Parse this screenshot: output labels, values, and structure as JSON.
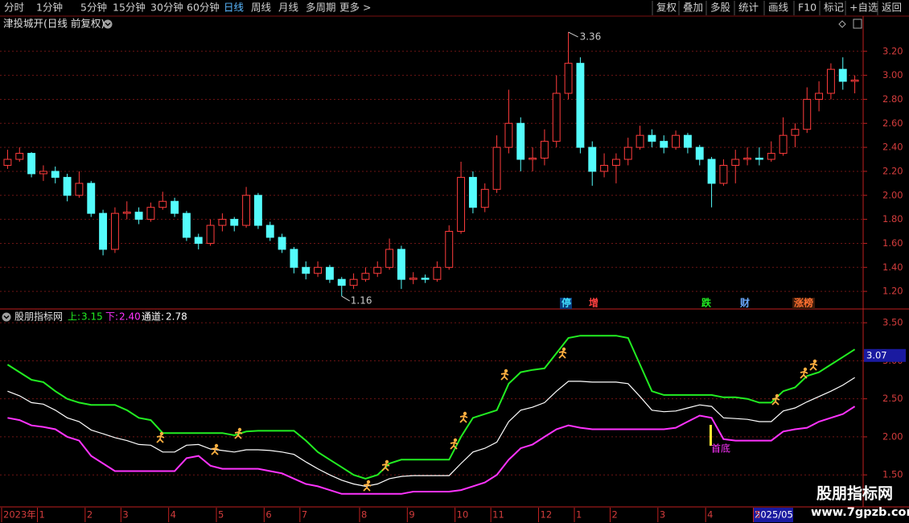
{
  "toolbar": {
    "left": [
      "分时",
      "1分钟",
      "5分钟",
      "15分钟",
      "30分钟",
      "60分钟",
      "日线",
      "周线",
      "月线",
      "多周期",
      "更多 >"
    ],
    "right": [
      "复权",
      "叠加",
      "多股",
      "统计",
      "画线",
      "F10",
      "标记",
      "+自选",
      "返回"
    ]
  },
  "event_badges": [
    "停",
    "增",
    "跌",
    "财",
    "涨榜"
  ],
  "indicator_note": "首底",
  "cursor_date": "2025/05",
  "watermark": {
    "title": "股朋指标网",
    "url": "www.7gpzb.com"
  },
  "chart_data": [
    {
      "type": "candlestick",
      "title": "津投城开(日线 前复权)",
      "categories": [
        "2023年",
        null,
        null,
        "1",
        null,
        null,
        null,
        "2",
        null,
        null,
        "3",
        null,
        null,
        null,
        "4",
        null,
        null,
        null,
        "5",
        null,
        null,
        null,
        "6",
        null,
        null,
        "7",
        null,
        null,
        null,
        null,
        "8",
        null,
        null,
        null,
        "9",
        null,
        null,
        null,
        "10",
        null,
        null,
        "11",
        null,
        null,
        null,
        "12",
        null,
        null,
        "1",
        null,
        null,
        "2",
        null,
        null,
        null,
        "3",
        null,
        null,
        null,
        "4",
        null,
        null,
        null,
        "5",
        null,
        null,
        null,
        null,
        null,
        null,
        null,
        null
      ],
      "candles": [
        [
          2.25,
          2.38,
          2.22,
          2.3
        ],
        [
          2.3,
          2.4,
          2.28,
          2.35
        ],
        [
          2.35,
          2.36,
          2.15,
          2.18
        ],
        [
          2.18,
          2.25,
          2.12,
          2.2
        ],
        [
          2.2,
          2.24,
          2.1,
          2.15
        ],
        [
          2.15,
          2.18,
          1.95,
          2.0
        ],
        [
          2.0,
          2.2,
          1.98,
          2.1
        ],
        [
          2.1,
          2.12,
          1.82,
          1.85
        ],
        [
          1.85,
          1.88,
          1.5,
          1.55
        ],
        [
          1.55,
          1.9,
          1.52,
          1.85
        ],
        [
          1.85,
          1.95,
          1.8,
          1.86
        ],
        [
          1.86,
          1.9,
          1.76,
          1.8
        ],
        [
          1.8,
          1.94,
          1.78,
          1.9
        ],
        [
          1.9,
          2.03,
          1.88,
          1.95
        ],
        [
          1.95,
          1.98,
          1.82,
          1.85
        ],
        [
          1.85,
          1.87,
          1.62,
          1.65
        ],
        [
          1.65,
          1.68,
          1.55,
          1.6
        ],
        [
          1.6,
          1.8,
          1.58,
          1.75
        ],
        [
          1.75,
          1.85,
          1.7,
          1.8
        ],
        [
          1.8,
          1.82,
          1.7,
          1.75
        ],
        [
          1.75,
          2.07,
          1.73,
          2.0
        ],
        [
          2.0,
          2.02,
          1.72,
          1.75
        ],
        [
          1.75,
          1.78,
          1.62,
          1.65
        ],
        [
          1.65,
          1.68,
          1.52,
          1.55
        ],
        [
          1.55,
          1.57,
          1.35,
          1.4
        ],
        [
          1.4,
          1.45,
          1.3,
          1.35
        ],
        [
          1.35,
          1.45,
          1.32,
          1.4
        ],
        [
          1.4,
          1.42,
          1.27,
          1.3
        ],
        [
          1.3,
          1.32,
          1.16,
          1.25
        ],
        [
          1.25,
          1.35,
          1.22,
          1.3
        ],
        [
          1.3,
          1.4,
          1.28,
          1.35
        ],
        [
          1.35,
          1.45,
          1.32,
          1.4
        ],
        [
          1.4,
          1.64,
          1.38,
          1.55
        ],
        [
          1.55,
          1.58,
          1.22,
          1.3
        ],
        [
          1.3,
          1.36,
          1.26,
          1.31
        ],
        [
          1.31,
          1.34,
          1.27,
          1.3
        ],
        [
          1.3,
          1.45,
          1.28,
          1.4
        ],
        [
          1.4,
          1.75,
          1.38,
          1.7
        ],
        [
          1.7,
          2.28,
          1.68,
          2.15
        ],
        [
          2.15,
          2.2,
          1.85,
          1.9
        ],
        [
          1.9,
          2.1,
          1.86,
          2.05
        ],
        [
          2.05,
          2.5,
          2.02,
          2.4
        ],
        [
          2.4,
          2.88,
          2.35,
          2.6
        ],
        [
          2.6,
          2.65,
          2.2,
          2.3
        ],
        [
          2.3,
          2.4,
          2.2,
          2.31
        ],
        [
          2.31,
          2.55,
          2.25,
          2.45
        ],
        [
          2.45,
          3.0,
          2.4,
          2.85
        ],
        [
          2.85,
          3.36,
          2.8,
          3.1
        ],
        [
          3.1,
          3.15,
          2.35,
          2.4
        ],
        [
          2.4,
          2.45,
          2.08,
          2.2
        ],
        [
          2.2,
          2.35,
          2.15,
          2.25
        ],
        [
          2.25,
          2.35,
          2.1,
          2.3
        ],
        [
          2.3,
          2.48,
          2.25,
          2.4
        ],
        [
          2.4,
          2.58,
          2.38,
          2.5
        ],
        [
          2.5,
          2.55,
          2.4,
          2.45
        ],
        [
          2.45,
          2.5,
          2.35,
          2.4
        ],
        [
          2.4,
          2.54,
          2.38,
          2.5
        ],
        [
          2.5,
          2.52,
          2.35,
          2.4
        ],
        [
          2.4,
          2.42,
          2.25,
          2.3
        ],
        [
          2.3,
          2.32,
          1.9,
          2.1
        ],
        [
          2.1,
          2.3,
          2.08,
          2.25
        ],
        [
          2.25,
          2.38,
          2.1,
          2.3
        ],
        [
          2.3,
          2.4,
          2.25,
          2.31
        ],
        [
          2.31,
          2.4,
          2.25,
          2.3
        ],
        [
          2.3,
          2.45,
          2.28,
          2.35
        ],
        [
          2.35,
          2.65,
          2.33,
          2.5
        ],
        [
          2.5,
          2.6,
          2.4,
          2.55
        ],
        [
          2.55,
          2.9,
          2.52,
          2.8
        ],
        [
          2.8,
          2.95,
          2.7,
          2.85
        ],
        [
          2.85,
          3.1,
          2.8,
          3.05
        ],
        [
          3.05,
          3.15,
          2.88,
          2.95
        ],
        [
          2.95,
          3.0,
          2.85,
          2.96
        ]
      ],
      "up_color": "#ff3c3c",
      "down_color": "#54fcfc",
      "max_label": 3.36,
      "min_label": 1.16,
      "ylim": [
        1.06,
        3.48
      ],
      "yticks": [
        {
          "value": 1.2,
          "label": "1.20"
        },
        {
          "value": 1.4,
          "label": "1.40"
        },
        {
          "value": 1.6,
          "label": "1.60"
        },
        {
          "value": 1.8,
          "label": "1.80"
        },
        {
          "value": 2,
          "label": "2.00"
        },
        {
          "value": 2.2,
          "label": "2.20"
        },
        {
          "value": 2.4,
          "label": "2.40"
        },
        {
          "value": 2.6,
          "label": "2.60"
        },
        {
          "value": 2.8,
          "label": "2.80"
        },
        {
          "value": 3,
          "label": "3.00"
        },
        {
          "value": 3.2,
          "label": "3.20"
        }
      ],
      "grid": true
    },
    {
      "type": "line",
      "title": "股朋指标网",
      "series": [
        {
          "name": "上:",
          "color": "#22ee22",
          "values": [
            2.95,
            2.85,
            2.75,
            2.72,
            2.6,
            2.5,
            2.45,
            2.42,
            2.42,
            2.42,
            2.35,
            2.25,
            2.22,
            2.05,
            2.05,
            2.05,
            2.05,
            2.05,
            2.05,
            2.02,
            2.07,
            2.08,
            2.08,
            2.08,
            2.08,
            1.95,
            1.8,
            1.7,
            1.6,
            1.5,
            1.45,
            1.5,
            1.65,
            1.7,
            1.7,
            1.7,
            1.7,
            1.7,
            2.0,
            2.25,
            2.3,
            2.35,
            2.7,
            2.85,
            2.88,
            2.9,
            3.1,
            3.3,
            3.33,
            3.33,
            3.33,
            3.33,
            3.3,
            2.95,
            2.6,
            2.55,
            2.55,
            2.55,
            2.55,
            2.55,
            2.52,
            2.52,
            2.5,
            2.45,
            2.45,
            2.6,
            2.65,
            2.8,
            2.85,
            2.95,
            3.05,
            3.15
          ]
        },
        {
          "name": "下:",
          "color": "#ff33ff",
          "values": [
            2.25,
            2.22,
            2.15,
            2.13,
            2.1,
            2.0,
            1.95,
            1.75,
            1.65,
            1.55,
            1.55,
            1.55,
            1.55,
            1.55,
            1.55,
            1.72,
            1.75,
            1.62,
            1.58,
            1.58,
            1.58,
            1.58,
            1.55,
            1.52,
            1.45,
            1.38,
            1.35,
            1.3,
            1.25,
            1.25,
            1.25,
            1.25,
            1.25,
            1.25,
            1.28,
            1.28,
            1.28,
            1.28,
            1.3,
            1.35,
            1.4,
            1.5,
            1.7,
            1.85,
            1.9,
            2.0,
            2.1,
            2.15,
            2.12,
            2.1,
            2.1,
            2.1,
            2.1,
            2.1,
            2.1,
            2.1,
            2.12,
            2.2,
            2.28,
            2.25,
            1.97,
            1.95,
            1.95,
            1.95,
            1.95,
            2.07,
            2.1,
            2.12,
            2.2,
            2.25,
            2.3,
            2.4
          ],
          "value_labels": [
            null,
            null,
            null,
            null,
            null,
            null,
            null,
            null,
            null,
            null,
            null,
            null,
            null,
            null,
            null,
            null,
            null,
            null,
            null,
            null,
            null,
            null,
            null,
            null,
            null,
            null,
            null,
            null,
            null,
            null,
            null,
            null,
            null,
            null,
            null,
            null,
            null,
            null,
            null,
            null,
            null,
            null,
            null,
            null,
            null,
            null,
            null,
            null,
            null,
            null,
            null,
            null,
            null,
            null,
            null,
            null,
            null,
            null,
            null,
            null,
            null,
            null,
            null,
            null,
            null,
            null,
            null,
            null,
            null,
            null,
            null,
            "2.40"
          ]
        },
        {
          "name": "通道:",
          "color": "#ffffff",
          "values": [
            2.6,
            2.54,
            2.45,
            2.43,
            2.35,
            2.25,
            2.2,
            2.09,
            2.04,
            1.99,
            1.95,
            1.9,
            1.89,
            1.8,
            1.8,
            1.89,
            1.9,
            1.84,
            1.82,
            1.8,
            1.83,
            1.83,
            1.82,
            1.8,
            1.77,
            1.67,
            1.58,
            1.5,
            1.43,
            1.38,
            1.35,
            1.38,
            1.45,
            1.48,
            1.49,
            1.49,
            1.49,
            1.49,
            1.65,
            1.8,
            1.85,
            1.93,
            2.2,
            2.35,
            2.39,
            2.45,
            2.6,
            2.73,
            2.73,
            2.72,
            2.72,
            2.72,
            2.7,
            2.53,
            2.35,
            2.33,
            2.34,
            2.38,
            2.42,
            2.4,
            2.25,
            2.24,
            2.23,
            2.2,
            2.2,
            2.34,
            2.38,
            2.46,
            2.53,
            2.6,
            2.68,
            2.78
          ]
        }
      ],
      "cursor_value": 3.07,
      "ylim": [
        1.1,
        3.66
      ],
      "yticks": [
        {
          "value": 1.5,
          "label": "1.50"
        },
        {
          "value": 2,
          "label": "2.00"
        },
        {
          "value": 2.5,
          "label": "2.50"
        },
        {
          "value": 3,
          "label": "3.00"
        },
        {
          "value": 3.5,
          "label": "3.50"
        }
      ],
      "grid": true
    }
  ]
}
